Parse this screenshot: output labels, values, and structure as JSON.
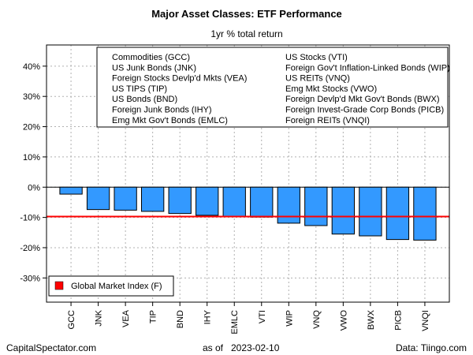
{
  "chart_data": {
    "type": "bar",
    "title": "Major Asset Classes: ETF Performance",
    "subtitle": "1yr % total return",
    "categories": [
      "GCC",
      "JNK",
      "VEA",
      "TIP",
      "BND",
      "IHY",
      "EMLC",
      "VTI",
      "WIP",
      "VNQ",
      "VWO",
      "BWX",
      "PICB",
      "VNQI"
    ],
    "values": [
      -2.3,
      -7.4,
      -7.6,
      -8.0,
      -8.7,
      -9.3,
      -9.8,
      -9.9,
      -11.9,
      -12.7,
      -15.5,
      -16.1,
      -17.3,
      -17.5
    ],
    "ylim": [
      -38,
      47
    ],
    "yticks": [
      -30,
      -20,
      -10,
      0,
      10,
      20,
      30,
      40
    ],
    "ytick_labels": [
      "-30%",
      "-20%",
      "-10%",
      "0%",
      "10%",
      "20%",
      "30%",
      "40%"
    ],
    "bar_color": "#3399ff",
    "grid": true,
    "reference_line": {
      "value": -9.7,
      "color": "#ff0000",
      "label": "Global Market Index (F)"
    },
    "legend_entries_left": [
      "Commodities (GCC)",
      "US Junk Bonds (JNK)",
      "Foreign Stocks Devlp'd Mkts (VEA)",
      "US TIPS (TIP)",
      "US Bonds (BND)",
      "Foreign Junk Bonds (IHY)",
      "Emg Mkt Gov't Bonds (EMLC)"
    ],
    "legend_entries_right": [
      "US Stocks (VTI)",
      "Foreign Gov't Inflation-Linked Bonds (WIP)",
      "US REITs (VNQ)",
      "Emg Mkt Stocks (VWO)",
      "Foreign Devlp'd Mkt Gov't Bonds (BWX)",
      "Foreign Invest-Grade Corp Bonds (PICB)",
      "Foreign REITs (VNQI)"
    ],
    "legend_placement": "top-right"
  },
  "footer": {
    "left": "CapitalSpectator.com",
    "center_prefix": "as of",
    "center_date": "2023-02-10",
    "right": "Data: Tiingo.com"
  }
}
